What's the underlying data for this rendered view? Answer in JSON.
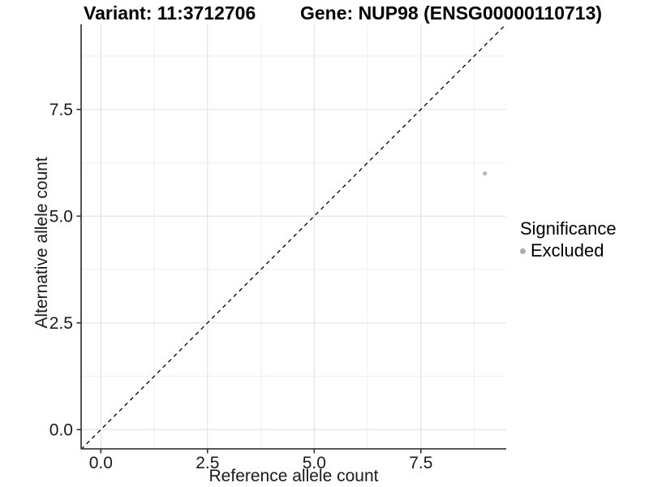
{
  "chart_data": {
    "type": "scatter",
    "title_left": "Variant: 11:3712706",
    "title_right": "Gene: NUP98 (ENSG00000110713)",
    "xlabel": "Reference allele count",
    "ylabel": "Alternative allele count",
    "xlim": [
      -0.46,
      9.5
    ],
    "ylim": [
      -0.45,
      9.49
    ],
    "x_ticks": {
      "values": [
        0,
        2.5,
        5,
        7.5
      ],
      "labels": [
        "0.0",
        "2.5",
        "5.0",
        "7.5"
      ],
      "minor": [
        1.25,
        3.75,
        6.25,
        8.75
      ]
    },
    "y_ticks": {
      "values": [
        0,
        2.5,
        5,
        7.5
      ],
      "labels": [
        "0.0",
        "2.5",
        "5.0",
        "7.5"
      ],
      "minor": [
        1.25,
        3.75,
        6.25,
        8.75
      ]
    },
    "grid": true,
    "series": [
      {
        "name": "Excluded",
        "color": "#bcbcbc",
        "points": [
          {
            "x": 9,
            "y": 6
          }
        ]
      }
    ],
    "reference_line": {
      "type": "identity y=x",
      "style": "dashed",
      "color": "#000000"
    },
    "legend": {
      "title": "Significance",
      "position": "right",
      "entries": [
        {
          "label": "Excluded",
          "color": "#ababab"
        }
      ]
    },
    "colors": {
      "major_grid": "#e3e3e3",
      "minor_grid": "#eeeeee",
      "axis_line": "#404040",
      "tick_text": "#1a1a1a"
    }
  }
}
